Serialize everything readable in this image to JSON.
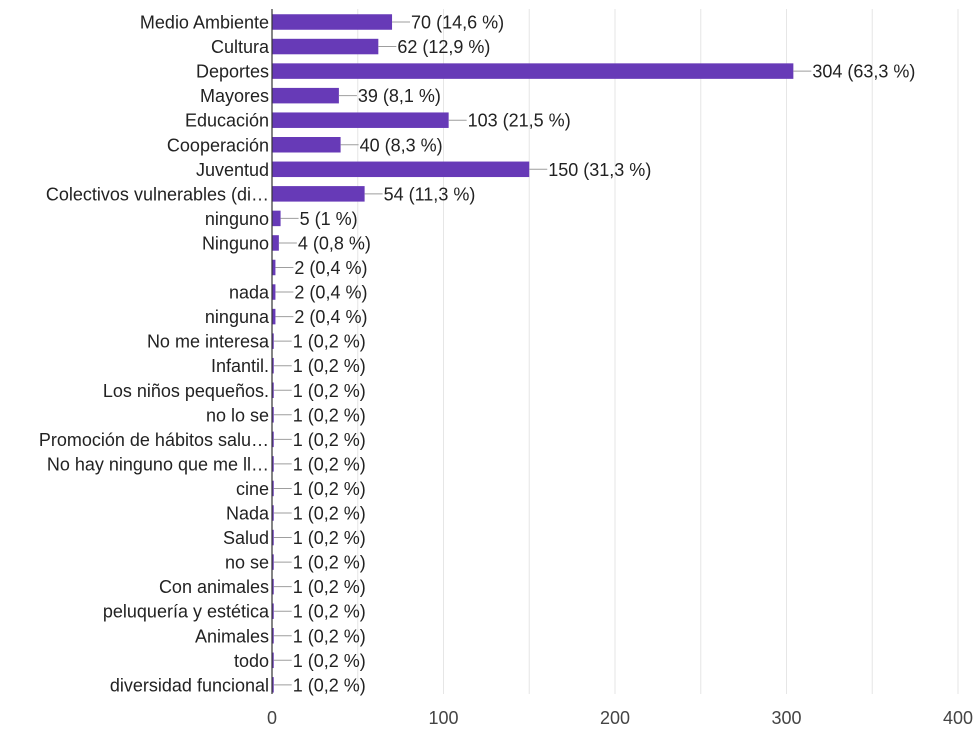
{
  "chart_data": {
    "type": "bar",
    "orientation": "horizontal",
    "bar_color": "#673ab7",
    "categories": [
      "Medio Ambiente",
      "Cultura",
      "Deportes",
      "Mayores",
      "Educación",
      "Cooperación",
      "Juventud",
      "Colectivos vulnerables (di…",
      "ninguno",
      "Ninguno",
      "",
      "nada",
      "ninguna",
      "No me interesa",
      "Infantil.",
      "Los niños pequeños.",
      "no lo se",
      "Promoción de hábitos salu…",
      "No hay ninguno que me ll…",
      "cine",
      "Nada",
      "Salud",
      "no se",
      "Con animales",
      "peluquería y estética",
      "Animales",
      "todo",
      "diversidad funcional"
    ],
    "values": [
      70,
      62,
      304,
      39,
      103,
      40,
      150,
      54,
      5,
      4,
      2,
      2,
      2,
      1,
      1,
      1,
      1,
      1,
      1,
      1,
      1,
      1,
      1,
      1,
      1,
      1,
      1,
      1
    ],
    "data_labels": [
      "70 (14,6 %)",
      "62 (12,9 %)",
      "304 (63,3 %)",
      "39 (8,1 %)",
      "103 (21,5 %)",
      "40 (8,3 %)",
      "150 (31,3 %)",
      "54 (11,3 %)",
      "5 (1 %)",
      "4 (0,8 %)",
      "2 (0,4 %)",
      "2 (0,4 %)",
      "2 (0,4 %)",
      "1 (0,2 %)",
      "1 (0,2 %)",
      "1 (0,2 %)",
      "1 (0,2 %)",
      "1 (0,2 %)",
      "1 (0,2 %)",
      "1 (0,2 %)",
      "1 (0,2 %)",
      "1 (0,2 %)",
      "1 (0,2 %)",
      "1 (0,2 %)",
      "1 (0,2 %)",
      "1 (0,2 %)",
      "1 (0,2 %)",
      "1 (0,2 %)"
    ],
    "xlim": [
      0,
      400
    ],
    "x_ticks": [
      "0",
      "100",
      "200",
      "300",
      "400"
    ],
    "grid": true,
    "title": "",
    "xlabel": "",
    "ylabel": ""
  }
}
